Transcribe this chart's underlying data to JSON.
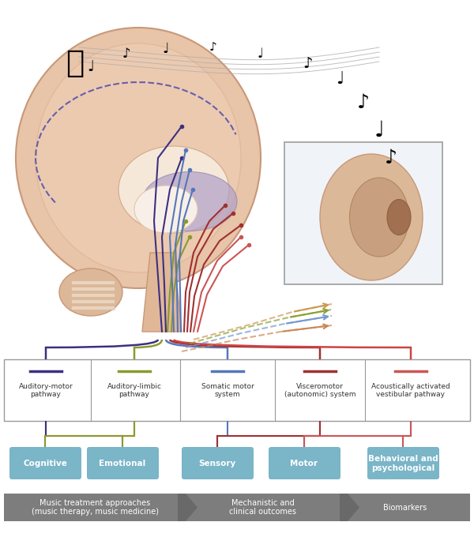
{
  "pathway_labels": [
    "Auditory-motor\npathway",
    "Auditory-limbic\npathway",
    "Somatic motor\nsystem",
    "Visceromotor\n(autonomic) system",
    "Acoustically activated\nvestibular pathway"
  ],
  "pathway_colors": [
    "#3d3080",
    "#8b9a2e",
    "#5577bb",
    "#a03030",
    "#cc4444"
  ],
  "outcome_labels": [
    "Cognitive",
    "Emotional",
    "Sensory",
    "Motor",
    "Behavioral and\npsychological"
  ],
  "outcome_color": "#7ab5c8",
  "bottom_labels": [
    "Music treatment approaches\n(music therapy, music medicine)",
    "Mechanistic and\nclinical outcomes",
    "Biomarkers"
  ],
  "bottom_color": "#666666",
  "legend_line_colors": [
    "#3d3080",
    "#8b9a2e",
    "#5577bb",
    "#a03030",
    "#cc4444"
  ],
  "bg_color": "#ffffff",
  "box_border": "#999999"
}
